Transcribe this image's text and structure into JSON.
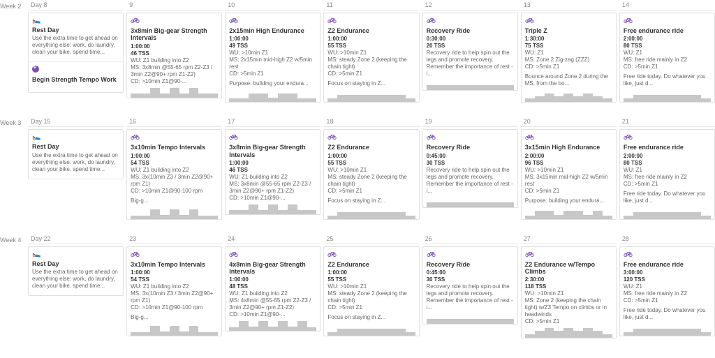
{
  "accent": "#7b4fb5",
  "weeks": [
    {
      "label": "Week 2",
      "days": [
        {
          "header": "Day 8",
          "cards": [
            {
              "type": "rest",
              "title": "Rest Day",
              "desc": "Use the extra time to get ahead on everything else: work, do laundry, clean your bike, spend time...",
              "sub": {
                "type": "event",
                "title": "Begin Strength Tempo Work"
              }
            }
          ]
        },
        {
          "header": "9",
          "cards": [
            {
              "type": "bike",
              "title": "3x8min Big-gear Strength Intervals",
              "duration": "1:00:00",
              "tss": "46 TSS",
              "lines": [
                "WU: Z1 building into Z2",
                "MS: 3x8min @55-65 rpm Z2-Z3 / 3min Z2@90+ rpm Z1-Z2)",
                "CD: >10min Z1@90-..."
              ],
              "chart": [
                6,
                6,
                14,
                6,
                14,
                6,
                14,
                6,
                6
              ]
            }
          ]
        },
        {
          "header": "10",
          "cards": [
            {
              "type": "bike",
              "title": "2x15min High Endurance",
              "duration": "1:00:00",
              "tss": "49 TSS",
              "lines": [
                "WU: >10min Z1",
                "MS: 2x15min mid-high Z2 w/5min rest",
                "CD: >5min Z1"
              ],
              "note": "Purpose: building your endura...",
              "chart": [
                5,
                5,
                12,
                12,
                6,
                12,
                12,
                5,
                5
              ]
            }
          ]
        },
        {
          "header": "11",
          "cards": [
            {
              "type": "bike",
              "title": "Z2 Endurance",
              "duration": "1:00:00",
              "tss": "55 TSS",
              "lines": [
                "WU: >10min Z1",
                "MS: steady Zone 2 (keeping the chain tight)",
                "CD: >5min Z1"
              ],
              "note": "Focus on staying in Z...",
              "chart": [
                5,
                10,
                10,
                10,
                10,
                10,
                10,
                10,
                5
              ]
            }
          ]
        },
        {
          "header": "12",
          "cards": [
            {
              "type": "bike",
              "title": "Recovery Ride",
              "duration": "0:30:00",
              "tss": "20 TSS",
              "lines": [
                "Recovery ride to help spin out the legs and promote recovery. Remember the importance of rest - i..."
              ],
              "chart": [
                7,
                7,
                7,
                7,
                7,
                7,
                7,
                7,
                7
              ]
            }
          ]
        },
        {
          "header": "13",
          "cards": [
            {
              "type": "bike",
              "title": "Triple Z",
              "duration": "1:30:00",
              "tss": "75 TSS",
              "lines": [
                "WU: Z1",
                "MS: Zone 2 Zig-zag (ZZZ)",
                "CD: >5min Z1"
              ],
              "note": "Bounce around Zone 2 during the MS, from the bo...",
              "chart": [
                5,
                8,
                12,
                8,
                12,
                8,
                12,
                8,
                5
              ]
            }
          ]
        },
        {
          "header": "14",
          "cards": [
            {
              "type": "bike",
              "title": "Free endurance ride",
              "duration": "2:00:00",
              "tss": "80 TSS",
              "lines": [
                "WU: Z1",
                "MS: free ride mainly in Z2",
                "CD: >5min Z1"
              ],
              "note": "Free ride today. Do whatever you like, just d...",
              "chart": [
                5,
                10,
                10,
                10,
                10,
                10,
                10,
                10,
                5
              ]
            }
          ]
        }
      ]
    },
    {
      "label": "Week 3",
      "days": [
        {
          "header": "Day 15",
          "cards": [
            {
              "type": "rest",
              "title": "Rest Day",
              "desc": "Use the extra time to get ahead on everything else: work, do laundry, clean your bike, spend time..."
            }
          ]
        },
        {
          "header": "16",
          "cards": [
            {
              "type": "bike",
              "title": "3x10min Tempo Intervals",
              "duration": "1:00:00",
              "tss": "54 TSS",
              "lines": [
                "WU: Z1 building into Z2",
                "MS: 3x(10min Z3 / 3min Z2@90+ rpm Z1)",
                "CD: >10min Z1@90-100 rpm"
              ],
              "note": "Big-g...",
              "chart": [
                5,
                5,
                14,
                6,
                14,
                6,
                14,
                5,
                5
              ]
            }
          ]
        },
        {
          "header": "17",
          "cards": [
            {
              "type": "bike",
              "title": "3x8min Big-gear Strength Intervals",
              "duration": "1:00:00",
              "tss": "46 TSS",
              "lines": [
                "WU: Z1 building into Z2",
                "MS: 3x8min @55-65 rpm Z2-Z3 / 3min Z2@90+ rpm Z1-Z2)",
                "CD: >10min Z1@90-..."
              ],
              "chart": [
                6,
                6,
                14,
                6,
                14,
                6,
                14,
                6,
                6
              ]
            }
          ]
        },
        {
          "header": "18",
          "cards": [
            {
              "type": "bike",
              "title": "Z2 Endurance",
              "duration": "1:00:00",
              "tss": "55 TSS",
              "lines": [
                "WU: >10min Z1",
                "MS: steady Zone 2 (keeping the chain tight)",
                "CD: >5min Z1"
              ],
              "note": "Focus on staying in Z...",
              "chart": [
                5,
                10,
                10,
                10,
                10,
                10,
                10,
                10,
                5
              ]
            }
          ]
        },
        {
          "header": "19",
          "cards": [
            {
              "type": "bike",
              "title": "Recovery Ride",
              "duration": "0:45:00",
              "tss": "30 TSS",
              "lines": [
                "Recovery ride to help spin out the legs and promote recovery. Remember the importance of rest - i..."
              ],
              "chart": [
                7,
                7,
                7,
                7,
                7,
                7,
                7,
                7,
                7
              ]
            }
          ]
        },
        {
          "header": "20",
          "cards": [
            {
              "type": "bike",
              "title": "3x15min High Endurance",
              "duration": "2:00:00",
              "tss": "96 TSS",
              "lines": [
                "WU: >10min Z1",
                "MS: 3x15min mid-high Z2 w/5min rest",
                "CD: >5min Z1"
              ],
              "note": "Purpose: building your endura...",
              "chart": [
                5,
                12,
                12,
                6,
                12,
                12,
                6,
                12,
                5
              ]
            }
          ]
        },
        {
          "header": "21",
          "cards": [
            {
              "type": "bike",
              "title": "Free endurance ride",
              "duration": "2:00:00",
              "tss": "80 TSS",
              "lines": [
                "WU: Z1",
                "MS: free ride mainly in Z2",
                "CD: >5min Z1"
              ],
              "note": "Free ride today. Do whatever you like, just d...",
              "chart": [
                5,
                10,
                10,
                10,
                10,
                10,
                10,
                10,
                5
              ]
            }
          ]
        }
      ]
    },
    {
      "label": "Week 4",
      "days": [
        {
          "header": "Day 22",
          "cards": [
            {
              "type": "rest",
              "title": "Rest Day",
              "desc": "Use the extra time to get ahead on everything else: work, do laundry, clean your bike, spend time..."
            }
          ]
        },
        {
          "header": "23",
          "cards": [
            {
              "type": "bike",
              "title": "3x10min Tempo Intervals",
              "duration": "1:00:00",
              "tss": "54 TSS",
              "lines": [
                "WU: Z1 building into Z2",
                "MS: 3x(10min Z3 / 3min Z2@90+ rpm Z1)",
                "CD: >10min Z1@90-100 rpm"
              ],
              "note": "Big-g...",
              "chart": [
                5,
                5,
                14,
                6,
                14,
                6,
                14,
                5,
                5
              ]
            }
          ]
        },
        {
          "header": "24",
          "cards": [
            {
              "type": "bike",
              "title": "4x8min Big-gear Strength Intervals",
              "duration": "1:00:00",
              "tss": "48 TSS",
              "lines": [
                "WU: Z1 building into Z2",
                "MS: 4x8min @55-65 rpm Z2-Z3 / 3min Z2@90+ rpm Z1-Z2)",
                "CD: >10min Z1@90-..."
              ],
              "chart": [
                5,
                14,
                6,
                14,
                6,
                14,
                6,
                14,
                5
              ]
            }
          ]
        },
        {
          "header": "25",
          "cards": [
            {
              "type": "bike",
              "title": "Z2 Endurance",
              "duration": "1:00:00",
              "tss": "55 TSS",
              "lines": [
                "WU: >10min Z1",
                "MS: steady Zone 2 (keeping the chain tight)",
                "CD: >5min Z1"
              ],
              "note": "Focus on staying in Z...",
              "chart": [
                5,
                10,
                10,
                10,
                10,
                10,
                10,
                10,
                5
              ]
            }
          ]
        },
        {
          "header": "26",
          "cards": [
            {
              "type": "bike",
              "title": "Recovery Ride",
              "duration": "0:45:00",
              "tss": "30 TSS",
              "lines": [
                "Recovery ride to help spin out the legs and promote recovery. Remember the importance of rest - i..."
              ],
              "chart": [
                7,
                7,
                7,
                7,
                7,
                7,
                7,
                7,
                7
              ]
            }
          ]
        },
        {
          "header": "27",
          "cards": [
            {
              "type": "bike",
              "title": "Z2 Endurance w/Tempo Climbs",
              "duration": "2:30:00",
              "tss": "118 TSS",
              "lines": [
                "WU: >10min Z1",
                "MS: Zone 2 (keeping the chain tight) w/Z3 Tempo on climbs or in headwinds",
                "CD: >5min Z1"
              ],
              "chart": [
                5,
                10,
                14,
                10,
                14,
                10,
                14,
                10,
                5
              ]
            }
          ]
        },
        {
          "header": "28",
          "cards": [
            {
              "type": "bike",
              "title": "Free endurance ride",
              "duration": "3:00:00",
              "tss": "120 TSS",
              "lines": [
                "WU: Z1",
                "MS: free ride mainly in Z2",
                "CD: >5min Z1"
              ],
              "note": "Free ride today. Do whatever you like, just d...",
              "chart": [
                5,
                10,
                10,
                10,
                10,
                10,
                10,
                10,
                5
              ]
            }
          ]
        }
      ]
    }
  ]
}
